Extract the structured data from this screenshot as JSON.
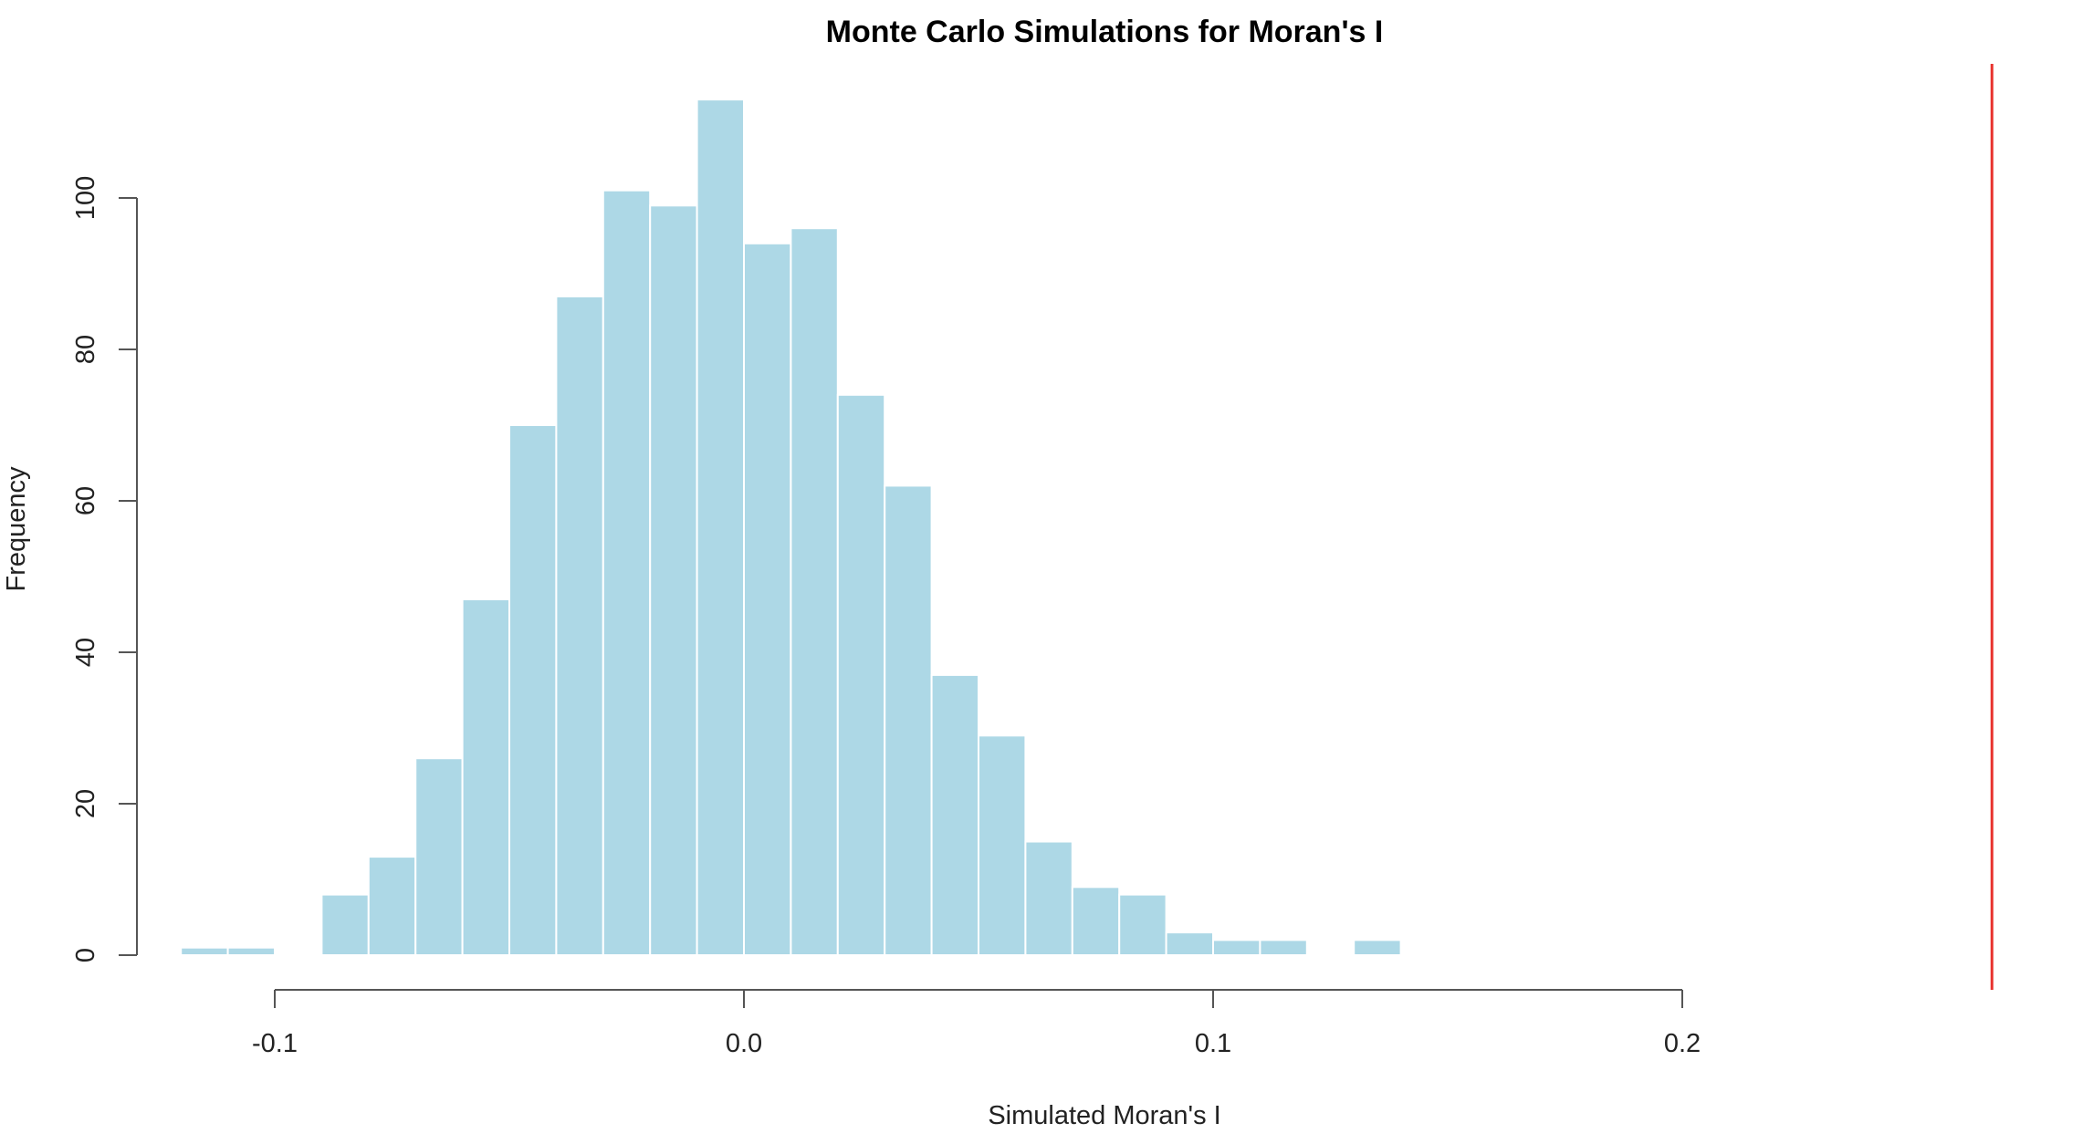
{
  "chart_data": {
    "type": "bar",
    "title": "Monte Carlo Simulations for Moran's I",
    "xlabel": "Simulated Moran's I",
    "ylabel": "Frequency",
    "xlim": [
      -0.13,
      0.27
    ],
    "ylim": [
      0,
      113
    ],
    "xticks": [
      -0.1,
      0.0,
      0.1,
      0.2
    ],
    "xtick_labels": [
      "-0.1",
      "0.0",
      "0.1",
      "0.2"
    ],
    "yticks": [
      0,
      20,
      40,
      60,
      80,
      100
    ],
    "ytick_labels": [
      "0",
      "20",
      "40",
      "60",
      "80",
      "100"
    ],
    "bin_width": 0.01,
    "bin_starts": [
      -0.12,
      -0.11,
      -0.1,
      -0.09,
      -0.08,
      -0.07,
      -0.06,
      -0.05,
      -0.04,
      -0.03,
      -0.02,
      -0.01,
      0.0,
      0.01,
      0.02,
      0.03,
      0.04,
      0.05,
      0.06,
      0.07,
      0.08,
      0.09,
      0.1,
      0.11,
      0.12,
      0.13
    ],
    "values": [
      1,
      1,
      0,
      8,
      13,
      26,
      47,
      70,
      87,
      101,
      99,
      113,
      94,
      96,
      74,
      62,
      37,
      29,
      15,
      9,
      8,
      3,
      2,
      2,
      0,
      2
    ],
    "bar_color": "#add8e6",
    "bar_border_color": "#ffffff",
    "observed_line": {
      "x": 0.266,
      "color": "#e8332e"
    },
    "grid": false,
    "legend": "none"
  }
}
